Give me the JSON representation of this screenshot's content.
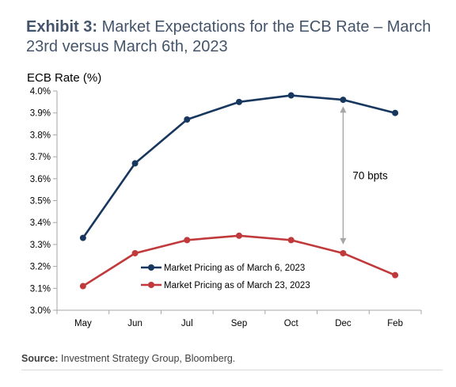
{
  "header": {
    "exhibit_label": "Exhibit 3:",
    "title_text": "Market Expectations for the ECB Rate – March 23rd versus March 6th, 2023"
  },
  "footer": {
    "source_label": "Source:",
    "source_text": "Investment Strategy Group, Bloomberg."
  },
  "colors": {
    "title": "#44546A",
    "series_march6": "#17375E",
    "series_march23": "#C0393B",
    "annotation_arrow": "#A6A6A6"
  },
  "chart_data": {
    "type": "line",
    "ylabel": "ECB Rate (%)",
    "xlabel": "",
    "categories": [
      "May",
      "Jun",
      "Jul",
      "Sep",
      "Oct",
      "Dec",
      "Feb"
    ],
    "ylim": [
      3.0,
      4.0
    ],
    "yticks": [
      "3.0%",
      "3.1%",
      "3.2%",
      "3.3%",
      "3.4%",
      "3.5%",
      "3.6%",
      "3.7%",
      "3.8%",
      "3.9%",
      "4.0%"
    ],
    "grid": false,
    "legend_position": "lower-center",
    "series": [
      {
        "name": "Market Pricing as of March 6, 2023",
        "color": "#17375E",
        "values": [
          3.33,
          3.67,
          3.87,
          3.95,
          3.98,
          3.96,
          3.9
        ]
      },
      {
        "name": "Market Pricing as of March 23, 2023",
        "color": "#C0393B",
        "values": [
          3.11,
          3.26,
          3.32,
          3.34,
          3.32,
          3.26,
          3.16
        ]
      }
    ],
    "annotation": {
      "text": "70 bpts",
      "category": "Dec",
      "from": 3.3,
      "to": 3.93
    }
  }
}
